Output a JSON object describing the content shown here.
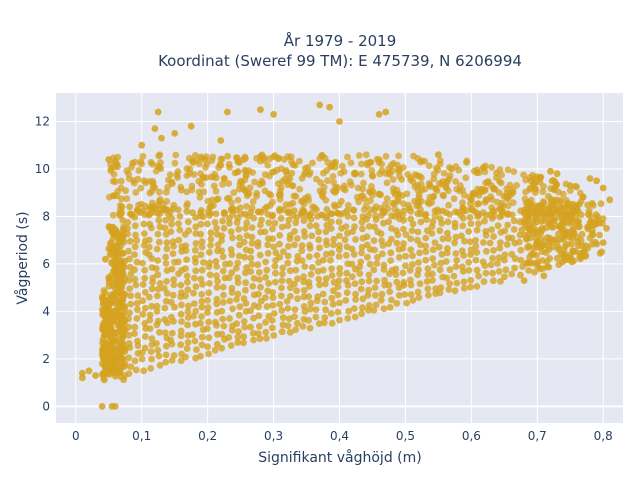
{
  "chart_data": {
    "type": "scatter",
    "title_line1": "År 1979 - 2019",
    "title_line2": "Koordinat (Sweref 99 TM): E 475739, N 6206994",
    "xlabel": "Signifikant våghöjd (m)",
    "ylabel": "Vågperiod (s)",
    "xlim": [
      -0.03,
      0.83
    ],
    "ylim": [
      -0.7,
      13.2
    ],
    "x_ticks": [
      0,
      0.1,
      0.2,
      0.3,
      0.4,
      0.5,
      0.6,
      0.7,
      0.8
    ],
    "x_tick_labels": [
      "0",
      "0,1",
      "0,2",
      "0,3",
      "0,4",
      "0,5",
      "0,6",
      "0,7",
      "0,8"
    ],
    "y_ticks": [
      0,
      2,
      4,
      6,
      8,
      10,
      12
    ],
    "y_tick_labels": [
      "0",
      "2",
      "4",
      "6",
      "8",
      "10",
      "12"
    ],
    "grid": true,
    "legend": "none",
    "colors": {
      "marker": "#d4a21f",
      "plot_bg": "#e5e8f2",
      "grid": "#ffffff",
      "text": "#2a3f5f"
    },
    "series": [
      {
        "points": [
          [
            0.04,
            0.0
          ],
          [
            0.055,
            0.0
          ],
          [
            0.06,
            0.0
          ],
          [
            0.01,
            1.2
          ],
          [
            0.01,
            1.4
          ],
          [
            0.02,
            1.5
          ],
          [
            0.03,
            1.3
          ],
          [
            0.045,
            6.2
          ],
          [
            0.05,
            10.4
          ],
          [
            0.06,
            10.3
          ],
          [
            0.1,
            11.0
          ],
          [
            0.12,
            11.7
          ],
          [
            0.125,
            12.4
          ],
          [
            0.13,
            11.3
          ],
          [
            0.15,
            11.5
          ],
          [
            0.175,
            11.8
          ],
          [
            0.22,
            11.2
          ],
          [
            0.23,
            12.4
          ],
          [
            0.28,
            12.5
          ],
          [
            0.3,
            12.3
          ],
          [
            0.37,
            12.7
          ],
          [
            0.385,
            12.6
          ],
          [
            0.4,
            12.0
          ],
          [
            0.46,
            12.3
          ],
          [
            0.47,
            12.4
          ],
          [
            0.55,
            10.6
          ],
          [
            0.57,
            10.0
          ],
          [
            0.72,
            9.9
          ],
          [
            0.73,
            9.8
          ],
          [
            0.75,
            9.3
          ],
          [
            0.78,
            9.6
          ],
          [
            0.79,
            9.5
          ],
          [
            0.8,
            9.2
          ],
          [
            0.81,
            8.7
          ],
          [
            0.805,
            7.5
          ],
          [
            0.8,
            6.9
          ],
          [
            0.77,
            6.5
          ],
          [
            0.74,
            6.3
          ],
          [
            0.71,
            5.5
          ],
          [
            0.68,
            5.3
          ],
          [
            0.75,
            8.1
          ],
          [
            0.76,
            8.3
          ]
        ]
      }
    ],
    "cloud_envelope": {
      "x_min": 0.04,
      "x_max": 0.8,
      "y_floor_at_xmin": 1.1,
      "y_floor_slope_per_m": 7.0,
      "y_dense_top_at_xmin": 8.5,
      "y_dense_top_at_xmax": 8.2,
      "y_sparse_top": 10.6
    }
  }
}
